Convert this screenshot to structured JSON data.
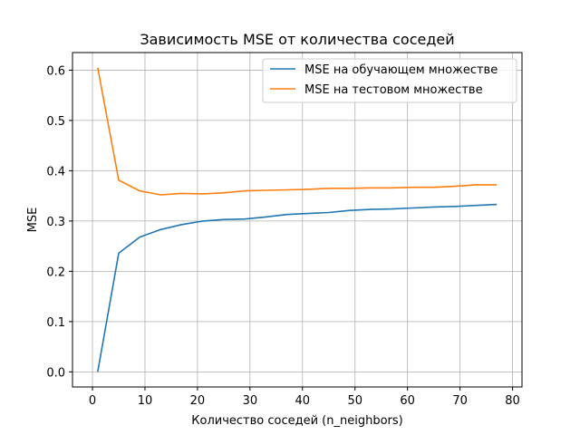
{
  "chart_data": {
    "type": "line",
    "title": "Зависимость MSE от количества соседей",
    "xlabel": "Количество соседей (n_neighbors)",
    "ylabel": "MSE",
    "xlim": [
      -3.8,
      81.8
    ],
    "ylim": [
      -0.03,
      0.635
    ],
    "xticks": [
      0,
      10,
      20,
      30,
      40,
      50,
      60,
      70,
      80
    ],
    "yticks": [
      0.0,
      0.1,
      0.2,
      0.3,
      0.4,
      0.5,
      0.6
    ],
    "grid": true,
    "legend_position": "top-right",
    "x": [
      1,
      5,
      9,
      13,
      17,
      21,
      25,
      29,
      33,
      37,
      41,
      45,
      49,
      53,
      57,
      61,
      65,
      69,
      73,
      77
    ],
    "series": [
      {
        "name": "MSE на обучающем множестве",
        "color": "#1f77b4",
        "values": [
          0.0,
          0.236,
          0.268,
          0.283,
          0.293,
          0.3,
          0.303,
          0.304,
          0.308,
          0.313,
          0.315,
          0.317,
          0.321,
          0.323,
          0.324,
          0.326,
          0.328,
          0.329,
          0.331,
          0.333
        ]
      },
      {
        "name": "MSE на тестовом множестве",
        "color": "#ff7f0e",
        "values": [
          0.605,
          0.381,
          0.36,
          0.352,
          0.355,
          0.354,
          0.356,
          0.36,
          0.361,
          0.362,
          0.363,
          0.365,
          0.365,
          0.366,
          0.366,
          0.367,
          0.367,
          0.369,
          0.372,
          0.372
        ]
      }
    ]
  }
}
